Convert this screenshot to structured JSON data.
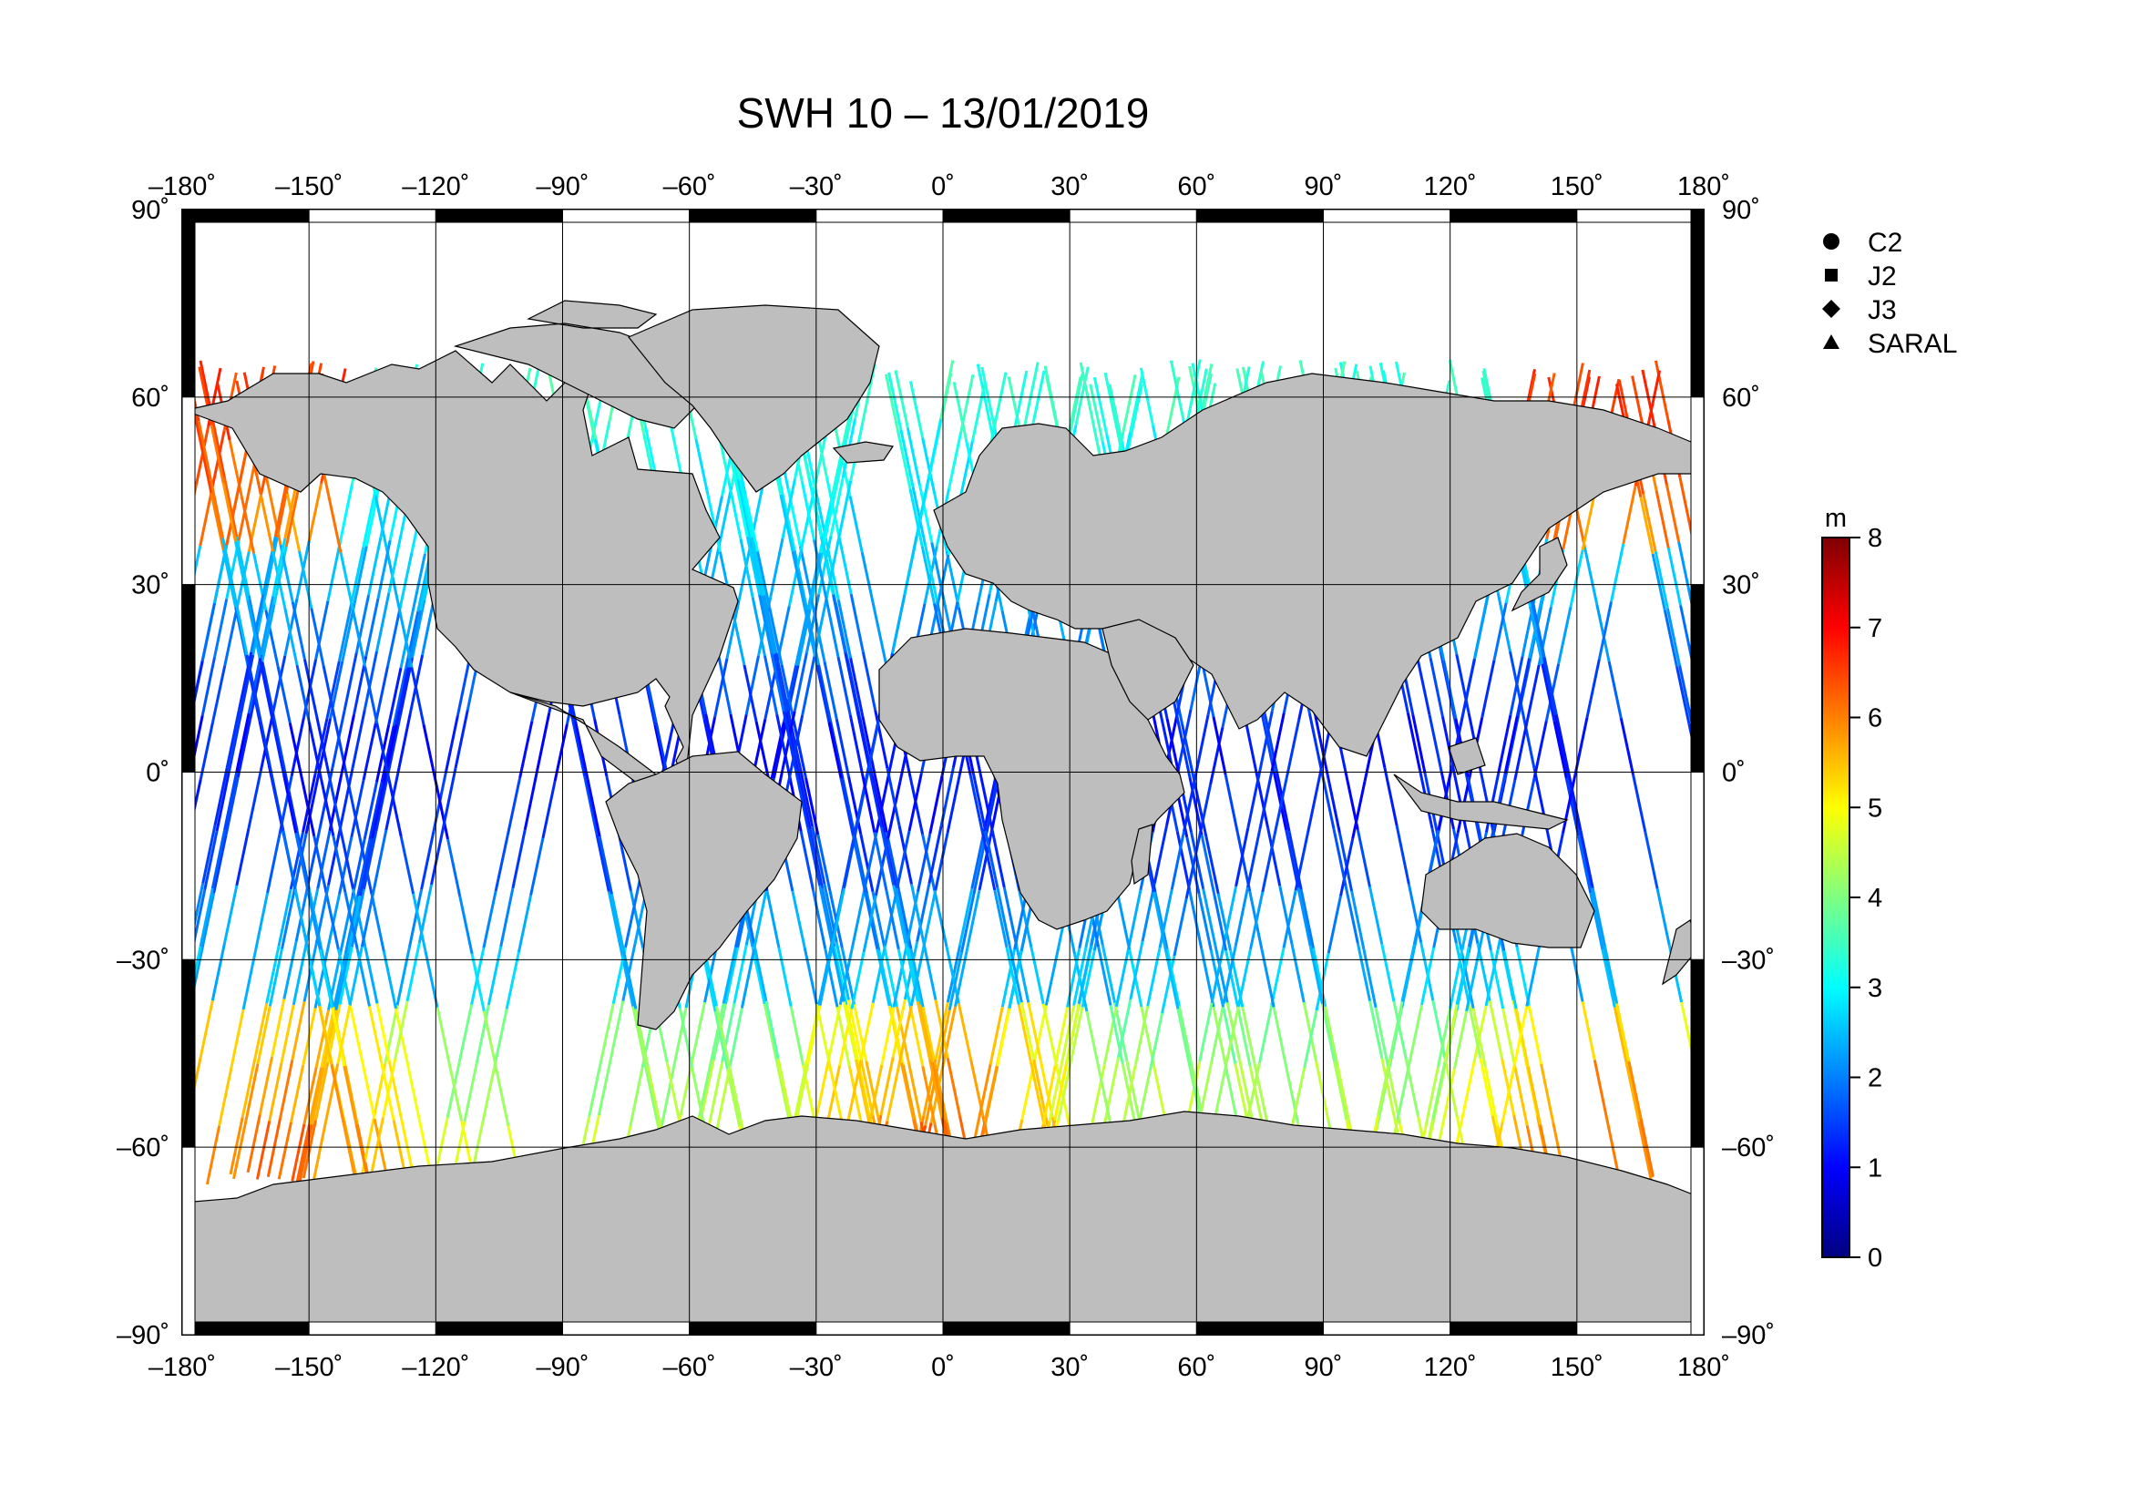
{
  "title": "SWH 10 – 13/01/2019",
  "lon_ticks": [
    -180,
    -150,
    -120,
    -90,
    -60,
    -30,
    0,
    30,
    60,
    90,
    120,
    150,
    180
  ],
  "lat_ticks": [
    90,
    60,
    30,
    0,
    -30,
    -60,
    -90
  ],
  "lon_labels": [
    "–180˚",
    "–150˚",
    "–120˚",
    "–90˚",
    "–60˚",
    "–30˚",
    "0˚",
    "30˚",
    "60˚",
    "90˚",
    "120˚",
    "150˚",
    "180˚"
  ],
  "lat_labels": [
    "90˚",
    "60˚",
    "30˚",
    "0˚",
    "–30˚",
    "–60˚",
    "–90˚"
  ],
  "legend": [
    {
      "symbol": "circle",
      "label": "C2"
    },
    {
      "symbol": "square",
      "label": "J2"
    },
    {
      "symbol": "diamond",
      "label": "J3"
    },
    {
      "symbol": "triangle",
      "label": "SARAL"
    }
  ],
  "colorbar": {
    "unit": "m",
    "min": 0,
    "max": 8,
    "tick_labels": [
      "0",
      "1",
      "2",
      "3",
      "4",
      "5",
      "6",
      "7",
      "8"
    ],
    "colors": [
      "#00007f",
      "#0000ff",
      "#0080ff",
      "#00ffff",
      "#80ff80",
      "#ffff00",
      "#ff8000",
      "#ff0000",
      "#7f0000"
    ]
  },
  "colors": {
    "land": "#bebebe",
    "ocean": "#ffffff",
    "grid": "#000000"
  }
}
